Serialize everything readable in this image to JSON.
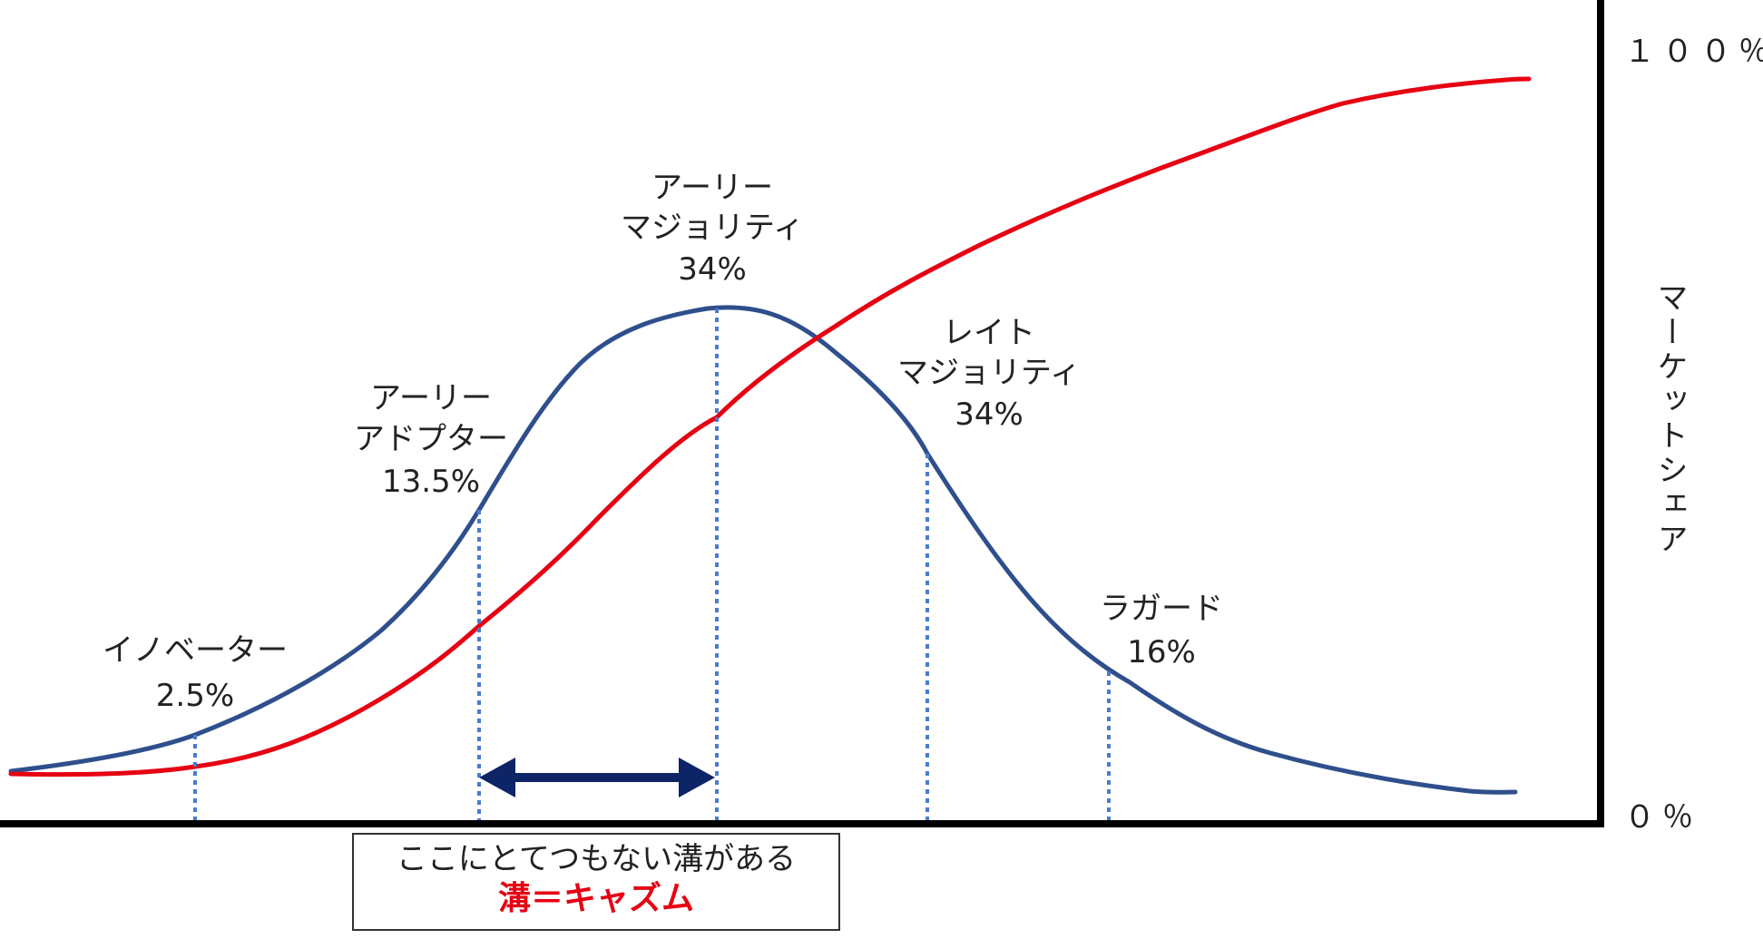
{
  "axis": {
    "top_label": "１００％",
    "bottom_label": "０％",
    "vertical_label": "マーケットシェア"
  },
  "segments": [
    {
      "id": "innovators",
      "name": "イノベーター",
      "percent": "2.5%"
    },
    {
      "id": "early-adopters",
      "name_line1": "アーリー",
      "name_line2": "アドプター",
      "percent": "13.5%"
    },
    {
      "id": "early-majority",
      "name_line1": "アーリー",
      "name_line2": "マジョリティ",
      "percent": "34%"
    },
    {
      "id": "late-majority",
      "name_line1": "レイト",
      "name_line2": "マジョリティ",
      "percent": "34%"
    },
    {
      "id": "laggards",
      "name": "ラガード",
      "percent": "16%"
    }
  ],
  "note": {
    "line1": "ここにとてつもない溝がある",
    "line2": "溝＝キャズム",
    "line2_color": "#e60012"
  },
  "colors": {
    "bell_curve": "#2f4f8c",
    "s_curve": "#e60012",
    "divider": "#4a7bd0",
    "arrow": "#0d2466",
    "axis": "#000000"
  }
}
